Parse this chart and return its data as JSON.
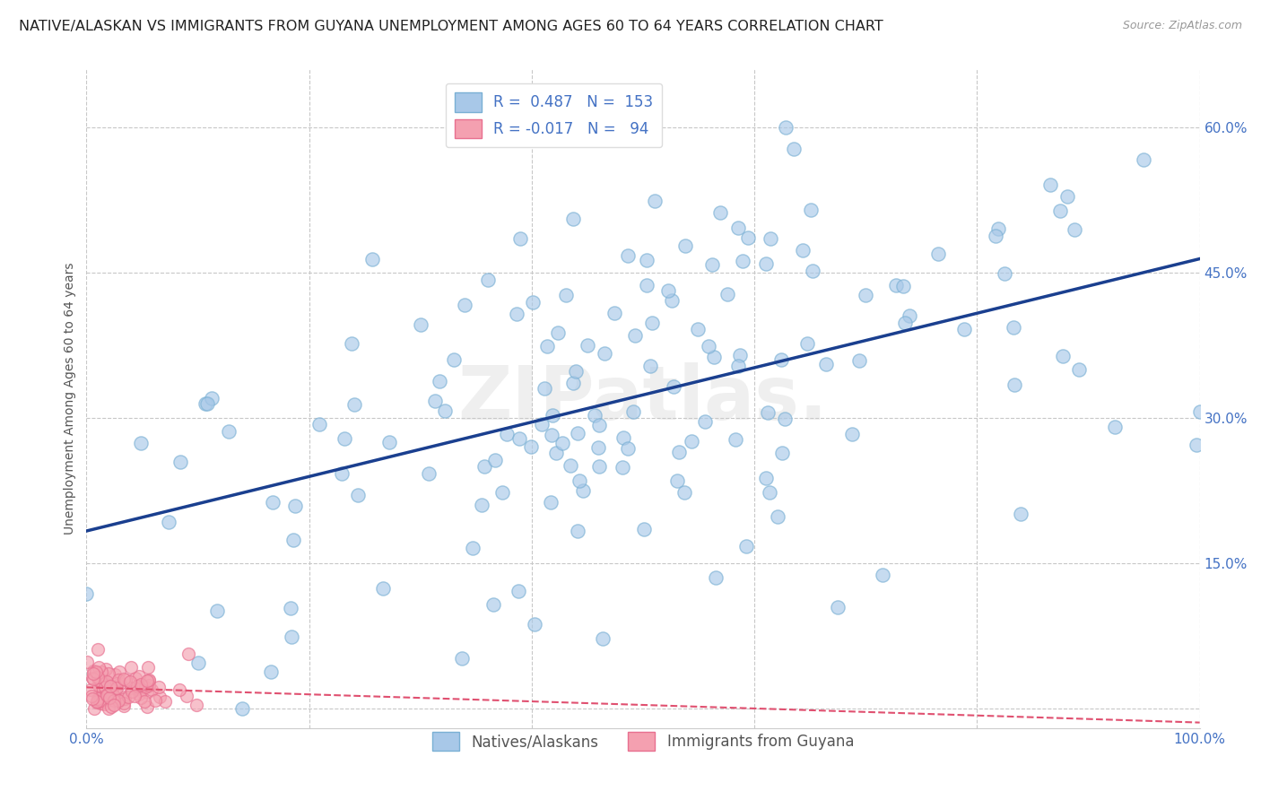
{
  "title": "NATIVE/ALASKAN VS IMMIGRANTS FROM GUYANA UNEMPLOYMENT AMONG AGES 60 TO 64 YEARS CORRELATION CHART",
  "source": "Source: ZipAtlas.com",
  "ylabel": "Unemployment Among Ages 60 to 64 years",
  "xlim": [
    0,
    1.0
  ],
  "ylim": [
    -0.02,
    0.66
  ],
  "xticks": [
    0.0,
    0.2,
    0.4,
    0.6,
    0.8,
    1.0
  ],
  "xticklabels": [
    "0.0%",
    "",
    "",
    "",
    "",
    "100.0%"
  ],
  "yticks": [
    0.0,
    0.15,
    0.3,
    0.45,
    0.6
  ],
  "yticklabels": [
    "",
    "15.0%",
    "30.0%",
    "45.0%",
    "60.0%"
  ],
  "blue_color": "#a8c8e8",
  "blue_edge_color": "#7ab0d4",
  "pink_color": "#f4a0b0",
  "pink_edge_color": "#e87090",
  "blue_line_color": "#1a3f8f",
  "pink_line_color": "#e05070",
  "grid_color": "#c8c8c8",
  "background_color": "#ffffff",
  "legend_R1": "0.487",
  "legend_N1": "153",
  "legend_R2": "-0.017",
  "legend_N2": "94",
  "watermark": "ZIPatlas.",
  "blue_R": 0.487,
  "pink_R": -0.017,
  "blue_N": 153,
  "pink_N": 94,
  "title_fontsize": 11.5,
  "axis_label_fontsize": 10,
  "tick_fontsize": 11,
  "legend_fontsize": 12,
  "tick_color": "#4472c4"
}
